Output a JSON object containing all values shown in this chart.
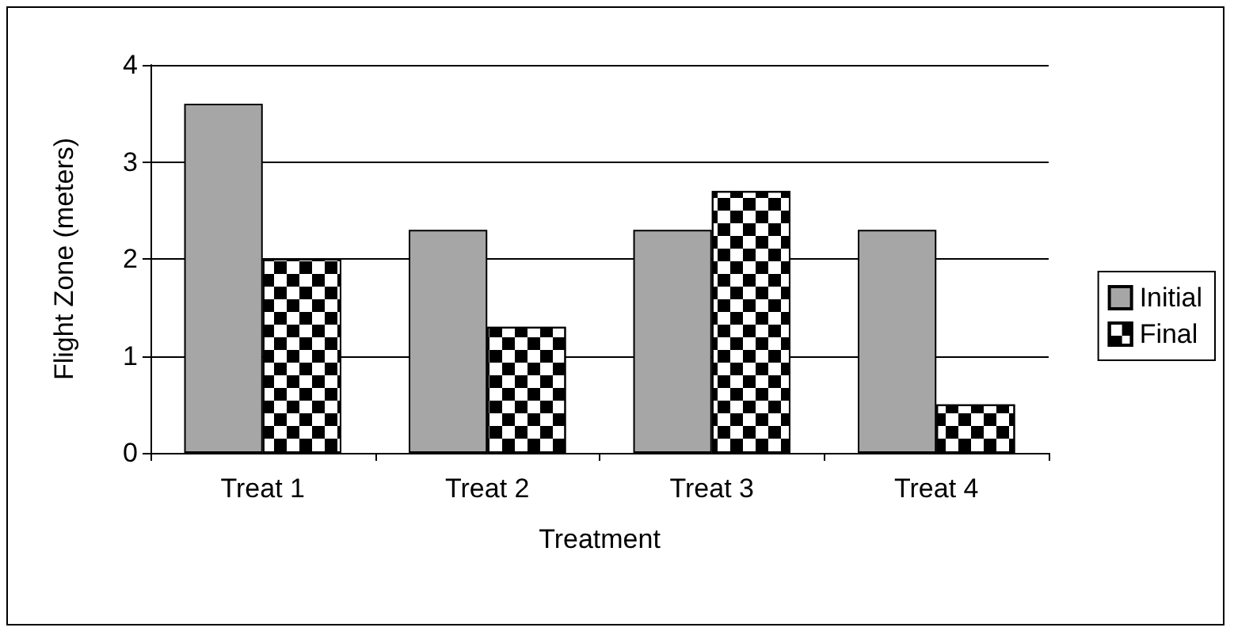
{
  "chart_data": {
    "type": "bar",
    "xlabel": "Treatment",
    "ylabel": "Flight Zone (meters)",
    "categories": [
      "Treat 1",
      "Treat 2",
      "Treat 3",
      "Treat 4"
    ],
    "series": [
      {
        "name": "Initial",
        "color": "#a6a6a6",
        "values": [
          3.6,
          2.3,
          2.3,
          2.3
        ]
      },
      {
        "name": "Final",
        "color": "#000000",
        "values": [
          2.0,
          1.3,
          2.7,
          0.5
        ]
      }
    ],
    "ylim": [
      0,
      4
    ],
    "yticks": [
      0,
      1,
      2,
      3,
      4
    ],
    "grid": "y",
    "legend": "right"
  }
}
